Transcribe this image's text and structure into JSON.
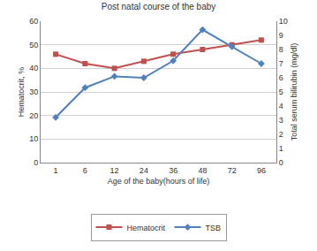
{
  "chart_data": {
    "type": "line",
    "title": "Post natal course of the baby",
    "x_label": "Age of the baby(hours of life)",
    "y_label": "Hematocrit, %",
    "y2_label": "Total serum bilirubin (mg/dl)",
    "categories": [
      "1",
      "6",
      "12",
      "24",
      "36",
      "48",
      "72",
      "96"
    ],
    "series": [
      {
        "name": "Hematocrit",
        "color": "#c0504d",
        "marker": "square",
        "values": [
          46,
          42,
          40,
          43,
          46,
          48,
          50,
          52
        ]
      },
      {
        "name": "TSB",
        "color": "#4f81bd",
        "marker": "diamond",
        "axis": "y2",
        "values": [
          3.2,
          5.3,
          6.1,
          6.0,
          7.2,
          9.4,
          8.2,
          7.0
        ]
      }
    ],
    "ylim": [
      0,
      60
    ],
    "yticks": [
      0,
      10,
      20,
      30,
      40,
      50,
      60
    ],
    "y2lim": [
      0,
      10
    ],
    "y2ticks": [
      0,
      1,
      2,
      3,
      4,
      5,
      6,
      7,
      8,
      9,
      10
    ],
    "grid": true,
    "legend": "bottom"
  }
}
